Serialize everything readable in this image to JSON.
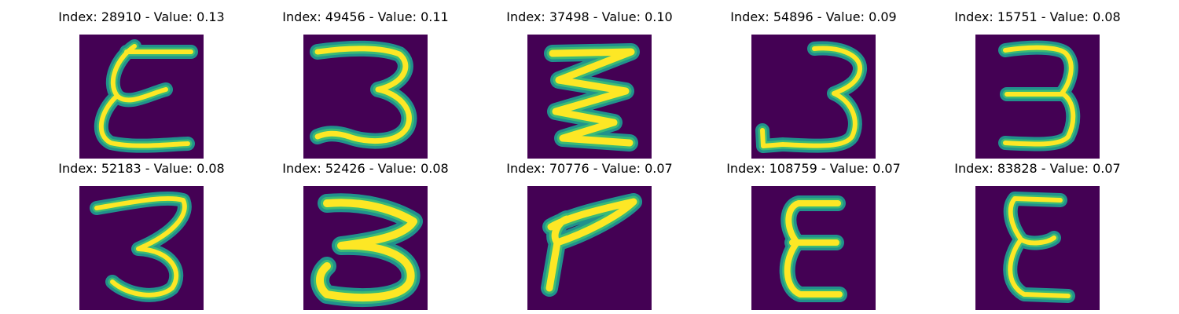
{
  "colors": {
    "background": "#440154",
    "mid": "#21918c",
    "high": "#3bbb75",
    "peak": "#fde725"
  },
  "images": [
    {
      "title": "Index: 28910 - Value: 0.13",
      "digit": "E-like glyph"
    },
    {
      "title": "Index: 49456 - Value: 0.11",
      "digit": "3"
    },
    {
      "title": "Index: 37498 - Value: 0.10",
      "digit": "zigzag"
    },
    {
      "title": "Index: 54896 - Value: 0.09",
      "digit": "3"
    },
    {
      "title": "Index: 15751 - Value: 0.08",
      "digit": "3"
    },
    {
      "title": "Index: 52183 - Value: 0.08",
      "digit": "3"
    },
    {
      "title": "Index: 52426 - Value: 0.08",
      "digit": "3"
    },
    {
      "title": "Index: 70776 - Value: 0.07",
      "digit": "7-like glyph"
    },
    {
      "title": "Index: 108759 - Value: 0.07",
      "digit": "E"
    },
    {
      "title": "Index: 83828 - Value: 0.07",
      "digit": "E"
    }
  ]
}
